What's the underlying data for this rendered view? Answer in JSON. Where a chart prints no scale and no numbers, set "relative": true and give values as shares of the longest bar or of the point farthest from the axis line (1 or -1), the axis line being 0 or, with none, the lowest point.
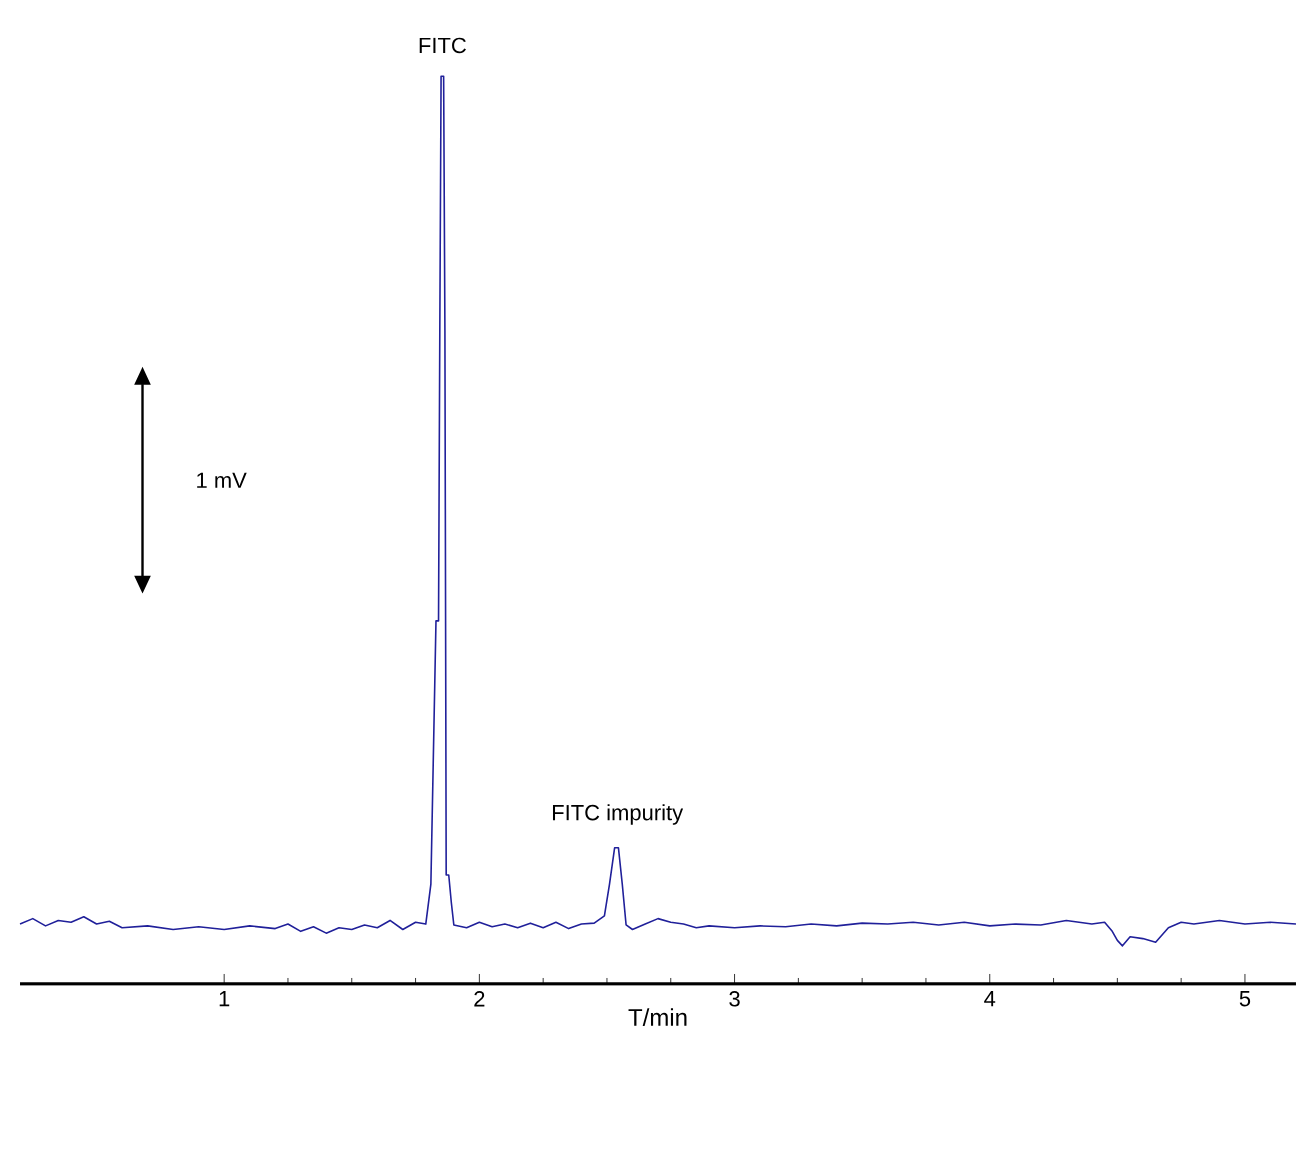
{
  "chart_data": {
    "type": "line",
    "relative": true,
    "xlabel": "T/min",
    "xlim": [
      0.2,
      5.2
    ],
    "xticks": [
      1,
      2,
      3,
      4,
      5
    ],
    "x": [
      0.2,
      0.25,
      0.3,
      0.35,
      0.4,
      0.45,
      0.5,
      0.55,
      0.6,
      0.7,
      0.8,
      0.9,
      1.0,
      1.1,
      1.2,
      1.25,
      1.3,
      1.35,
      1.4,
      1.45,
      1.5,
      1.55,
      1.6,
      1.65,
      1.7,
      1.75,
      1.79,
      1.81,
      1.83,
      1.84,
      1.845,
      1.85,
      1.86,
      1.865,
      1.87,
      1.88,
      1.89,
      1.9,
      1.95,
      2.0,
      2.05,
      2.1,
      2.15,
      2.2,
      2.25,
      2.3,
      2.35,
      2.4,
      2.45,
      2.49,
      2.51,
      2.53,
      2.545,
      2.56,
      2.575,
      2.6,
      2.65,
      2.7,
      2.75,
      2.8,
      2.85,
      2.9,
      3.0,
      3.1,
      3.2,
      3.3,
      3.4,
      3.5,
      3.6,
      3.7,
      3.8,
      3.9,
      4.0,
      4.1,
      4.2,
      4.3,
      4.4,
      4.45,
      4.48,
      4.5,
      4.52,
      4.55,
      4.6,
      4.65,
      4.7,
      4.75,
      4.8,
      4.9,
      5.0,
      5.1,
      5.2
    ],
    "series": [
      {
        "color": "#20209a",
        "values": [
          0.066,
          0.072,
          0.064,
          0.07,
          0.068,
          0.074,
          0.066,
          0.069,
          0.062,
          0.064,
          0.06,
          0.063,
          0.06,
          0.064,
          0.061,
          0.066,
          0.058,
          0.063,
          0.056,
          0.062,
          0.06,
          0.065,
          0.062,
          0.07,
          0.06,
          0.068,
          0.066,
          0.11,
          0.4,
          0.4,
          0.72,
          1.0,
          1.0,
          0.72,
          0.12,
          0.12,
          0.09,
          0.065,
          0.062,
          0.068,
          0.063,
          0.066,
          0.062,
          0.067,
          0.062,
          0.068,
          0.061,
          0.066,
          0.067,
          0.075,
          0.11,
          0.15,
          0.15,
          0.11,
          0.065,
          0.06,
          0.066,
          0.072,
          0.068,
          0.066,
          0.062,
          0.064,
          0.062,
          0.064,
          0.063,
          0.066,
          0.064,
          0.067,
          0.066,
          0.068,
          0.065,
          0.068,
          0.064,
          0.066,
          0.065,
          0.07,
          0.066,
          0.068,
          0.058,
          0.048,
          0.042,
          0.052,
          0.05,
          0.046,
          0.062,
          0.068,
          0.066,
          0.07,
          0.066,
          0.068,
          0.066
        ]
      }
    ],
    "annotations": [
      {
        "text": "FITC",
        "x": 1.855,
        "y": 1.0
      },
      {
        "text": "FITC impurity",
        "x": 2.54,
        "y": 0.15
      },
      "1 mV"
    ]
  }
}
